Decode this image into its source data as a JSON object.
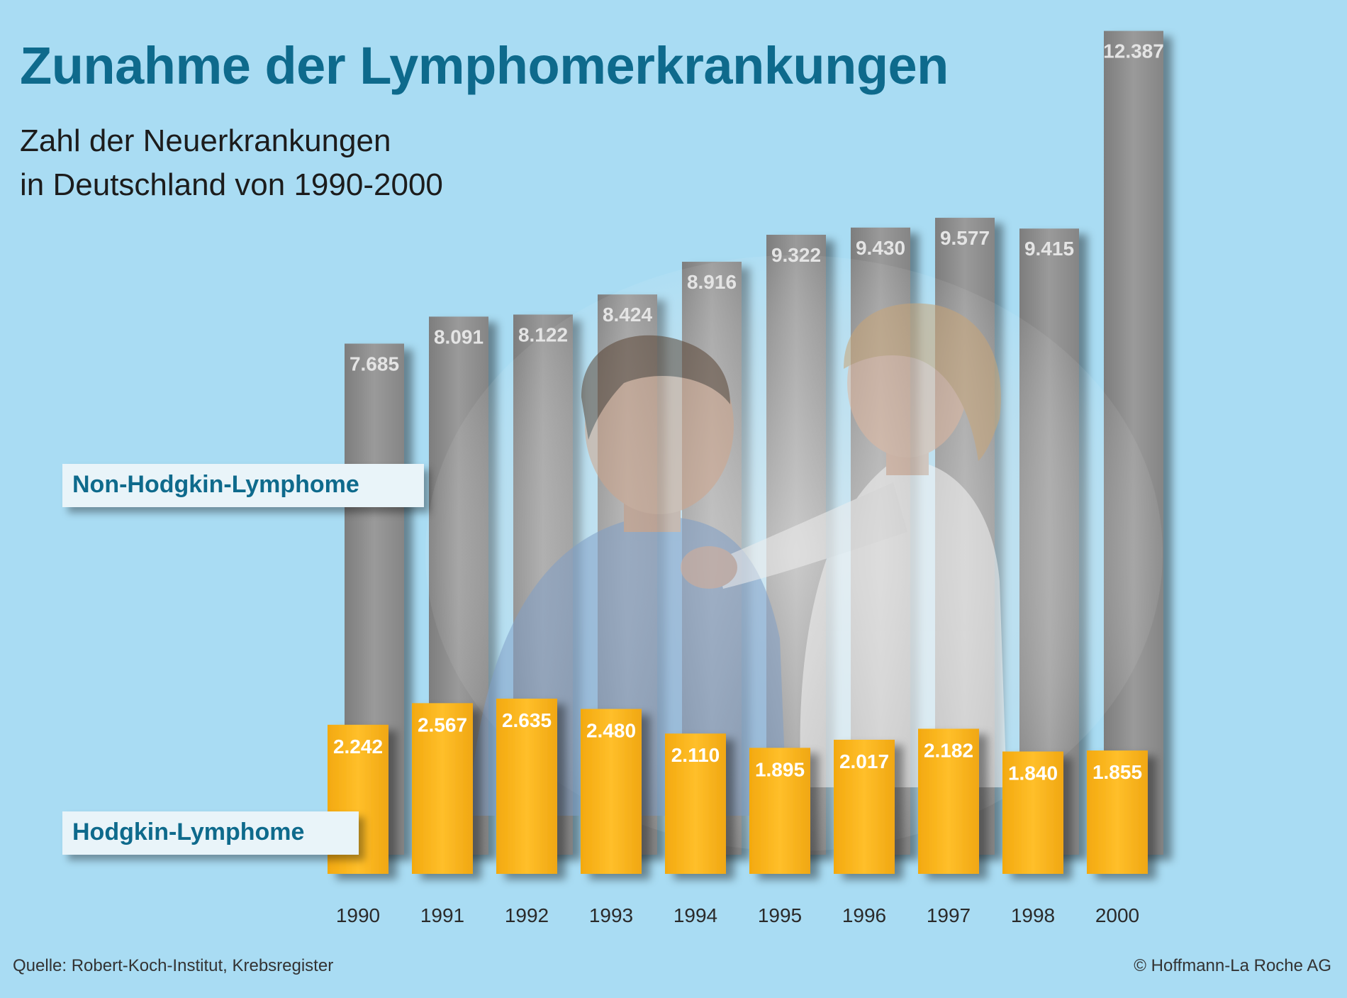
{
  "header": {
    "title": "Zunahme der Lymphomerkrankungen",
    "subtitle_line1": "Zahl der Neuerkrankungen",
    "subtitle_line2": "in Deutschland von 1990-2000"
  },
  "footer": {
    "source": "Quelle: Robert-Koch-Institut, Krebsregister",
    "copyright": "© Hoffmann-La Roche AG"
  },
  "colors": {
    "background": "#a9dcf3",
    "nhl_bar": "#8f8f8f",
    "hl_bar": "#f8b21c",
    "title": "#0e6a8c"
  },
  "chart_data": {
    "type": "bar",
    "title": "Zunahme der Lymphomerkrankungen",
    "subtitle": "Zahl der Neuerkrankungen in Deutschland von 1990-2000",
    "categories": [
      "1990",
      "1991",
      "1992",
      "1993",
      "1994",
      "1995",
      "1996",
      "1997",
      "1998",
      "2000"
    ],
    "ylim": [
      0,
      12500
    ],
    "grid": false,
    "series": [
      {
        "name": "Non-Hodgkin-Lymphome",
        "values": [
          7685,
          8091,
          8122,
          8424,
          8916,
          9322,
          9430,
          9577,
          9415,
          12387
        ],
        "labels": [
          "7.685",
          "8.091",
          "8.122",
          "8.424",
          "8.916",
          "9.322",
          "9.430",
          "9.577",
          "9.415",
          "12.387"
        ]
      },
      {
        "name": "Hodgkin-Lymphome",
        "values": [
          2242,
          2567,
          2635,
          2480,
          2110,
          1895,
          2017,
          2182,
          1840,
          1855
        ],
        "labels": [
          "2.242",
          "2.567",
          "2.635",
          "2.480",
          "2.110",
          "1.895",
          "2.017",
          "2.182",
          "1.840",
          "1.855"
        ]
      }
    ]
  }
}
